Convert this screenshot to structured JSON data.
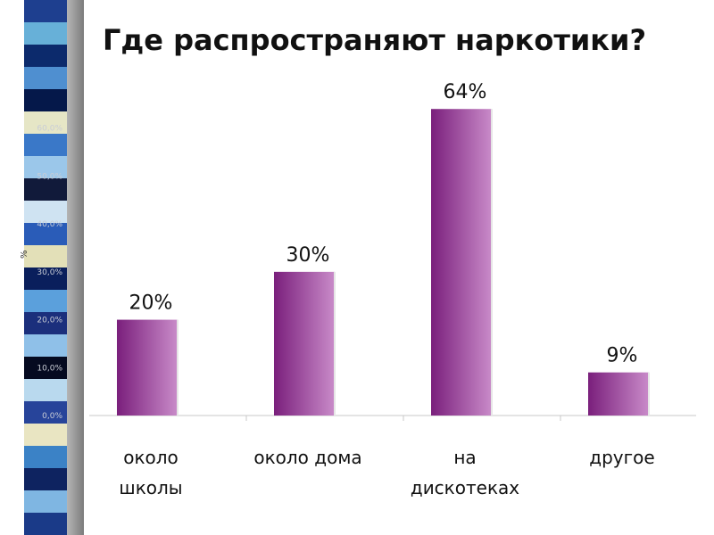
{
  "colors": {
    "bar_dark": "#7a1f7c",
    "bar_light": "#c98bc9",
    "stripes": [
      "#1e3f8f",
      "#67b0d8",
      "#0c2a6c",
      "#4f8fd0",
      "#05184a",
      "#e6e6c6",
      "#3a78c8",
      "#9bc7ea",
      "#111a3a",
      "#cfe3f2",
      "#2a5cb8",
      "#e3e0b8",
      "#0a1f5c",
      "#5ba0dc",
      "#1b2f7c",
      "#8fc0e8",
      "#050a20",
      "#b9d9ee",
      "#27449a",
      "#e9e5c2",
      "#3b82c6",
      "#0e2360",
      "#7fb6e2",
      "#1a3a88"
    ]
  },
  "chart_data": {
    "type": "bar",
    "title": "Где распространяют наркотики?",
    "ylabel": "%",
    "ylim": [
      0,
      70
    ],
    "yticks": [
      "0,0%",
      "10,0%",
      "20,0%",
      "30,0%",
      "40,0%",
      "50,0%",
      "60,0%"
    ],
    "categories": [
      [
        "около",
        "школы"
      ],
      [
        "около  дома"
      ],
      [
        "на",
        "дискотеках"
      ],
      [
        "другое"
      ]
    ],
    "values": [
      20,
      30,
      64,
      9
    ],
    "data_labels": [
      "20%",
      "30%",
      "64%",
      "9%"
    ],
    "grid": false,
    "legend": "none"
  }
}
